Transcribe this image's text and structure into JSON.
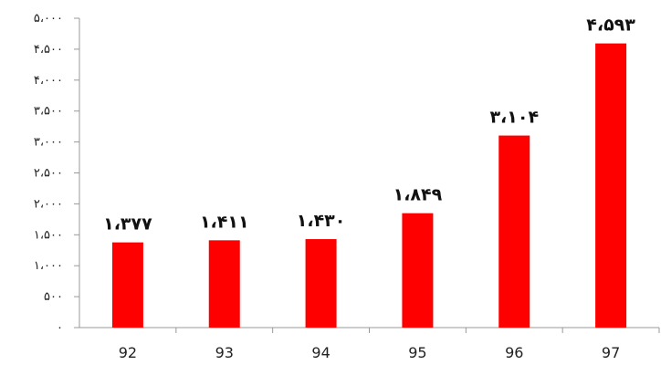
{
  "chart_data": {
    "type": "bar",
    "categories": [
      "92",
      "93",
      "94",
      "95",
      "96",
      "97"
    ],
    "values": [
      1377,
      1411,
      1430,
      1849,
      3104,
      4593
    ],
    "value_labels": [
      "۱،۳۷۷",
      "۱،۴۱۱",
      "۱،۴۳۰",
      "۱،۸۴۹",
      "۳،۱۰۴",
      "۴،۵۹۳"
    ],
    "yticks": [
      0,
      500,
      1000,
      1500,
      2000,
      2500,
      3000,
      3500,
      4000,
      4500,
      5000
    ],
    "ytick_labels": [
      "۰",
      "۵۰۰",
      "۱،۰۰۰",
      "۱،۵۰۰",
      "۲،۰۰۰",
      "۲،۵۰۰",
      "۳،۰۰۰",
      "۳،۵۰۰",
      "۴،۰۰۰",
      "۴،۵۰۰",
      "۵،۰۰۰"
    ],
    "ylim": [
      0,
      5000
    ],
    "grid": false,
    "title": "",
    "xlabel": "",
    "ylabel": "",
    "colors": {
      "bar": "#ff0000",
      "axis": "#999999",
      "text": "#222222"
    }
  }
}
